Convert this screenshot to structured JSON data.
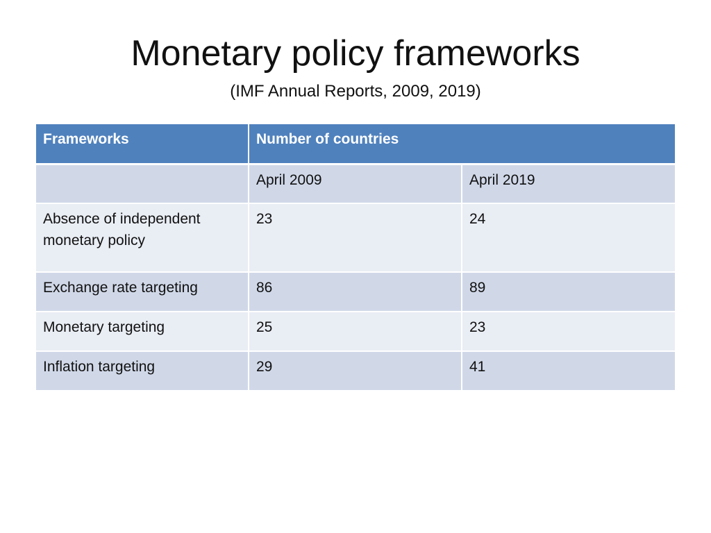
{
  "slide": {
    "title": "Monetary policy frameworks",
    "subtitle": "(IMF Annual Reports, 2009, 2019)"
  },
  "table": {
    "headers": [
      "Frameworks",
      "Number of countries"
    ],
    "subheaders": [
      "",
      "April 2009",
      "April 2019"
    ],
    "rows": [
      [
        "Absence of independent monetary policy",
        "23",
        "24"
      ],
      [
        "Exchange rate targeting",
        "86",
        "89"
      ],
      [
        "Monetary targeting",
        "25",
        "23"
      ],
      [
        "Inflation targeting",
        "29",
        "41"
      ]
    ]
  },
  "colors": {
    "header": "#4f81bd",
    "row_dark": "#d0d8e8",
    "row_light": "#e9edf4"
  }
}
